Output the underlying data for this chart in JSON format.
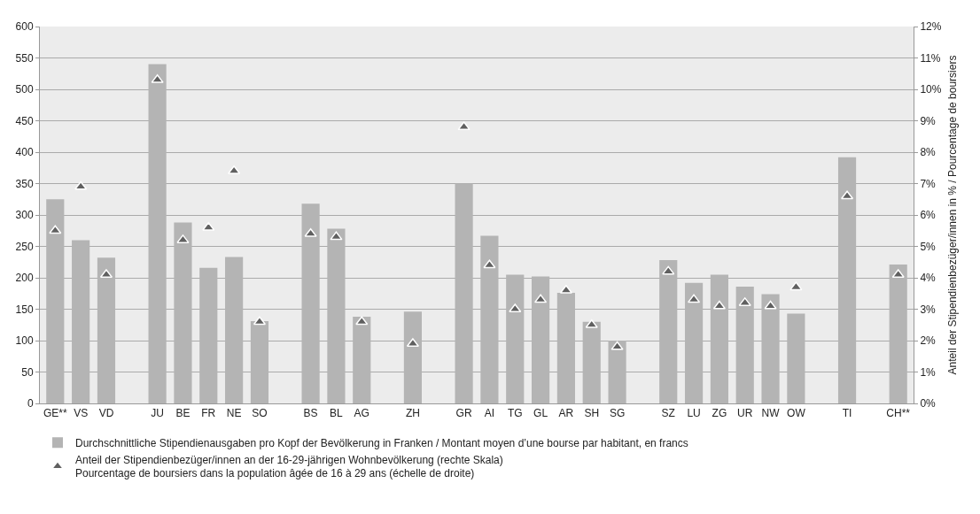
{
  "chart_data": {
    "type": "bar",
    "categories": [
      "GE**",
      "VS",
      "VD",
      null,
      "JU",
      "BE",
      "FR",
      "NE",
      "SO",
      null,
      "BS",
      "BL",
      "AG",
      null,
      "ZH",
      null,
      "GR",
      "AI",
      "TG",
      "GL",
      "AR",
      "SH",
      "SG",
      null,
      "SZ",
      "LU",
      "ZG",
      "UR",
      "NW",
      "OW",
      null,
      "TI",
      null,
      "CH**"
    ],
    "series": [
      {
        "name": "Durchschnittliche Stipendienausgaben pro Kopf der Bevölkerung in Franken / Montant moyen d’une bourse par habitant, en francs",
        "color": "#b4b4b4",
        "values": [
          325,
          260,
          232,
          null,
          540,
          288,
          216,
          233,
          131,
          null,
          318,
          278,
          138,
          null,
          146,
          null,
          350,
          267,
          205,
          202,
          176,
          130,
          100,
          null,
          228,
          192,
          205,
          186,
          174,
          143,
          null,
          392,
          null,
          221
        ]
      },
      {
        "name": "Anteil der Stipendienbezüger/innen an der 16-29-jährigen Wohnbevölkerung (rechte Skala)\nPourcentage de boursiers dans la population âgée de 16 à 29 ans (échelle de droite)",
        "type": "scatter",
        "axis": "y2",
        "marker": "triangle",
        "color": "#606060",
        "values": [
          5.5,
          6.9,
          4.1,
          null,
          10.3,
          5.2,
          5.6,
          7.4,
          2.6,
          null,
          5.4,
          5.3,
          2.6,
          null,
          1.9,
          null,
          8.8,
          4.4,
          3.0,
          3.3,
          3.6,
          2.5,
          1.8,
          null,
          4.2,
          3.3,
          3.1,
          3.2,
          3.1,
          3.7,
          null,
          6.6,
          null,
          4.1
        ]
      }
    ],
    "y2label": "Anteil der Stipendienbezüger/innen in % / Pourcentage de boursiers",
    "ylim": [
      0,
      600
    ],
    "yticks": [
      0,
      50,
      100,
      150,
      200,
      250,
      300,
      350,
      400,
      450,
      500,
      550,
      600
    ],
    "y2lim": [
      0,
      12
    ],
    "y2ticks": [
      {
        "value": 0,
        "label": "0%"
      },
      {
        "value": 1,
        "label": "1%"
      },
      {
        "value": 2,
        "label": "2%"
      },
      {
        "value": 3,
        "label": "3%"
      },
      {
        "value": 4,
        "label": "4%"
      },
      {
        "value": 5,
        "label": "5%"
      },
      {
        "value": 6,
        "label": "6%"
      },
      {
        "value": 7,
        "label": "7%"
      },
      {
        "value": 8,
        "label": "8%"
      },
      {
        "value": 9,
        "label": "9%"
      },
      {
        "value": 10,
        "label": "10%"
      },
      {
        "value": 11,
        "label": "11%"
      },
      {
        "value": 12,
        "label": "12%"
      }
    ],
    "grid": "y",
    "legend": "bottom"
  }
}
